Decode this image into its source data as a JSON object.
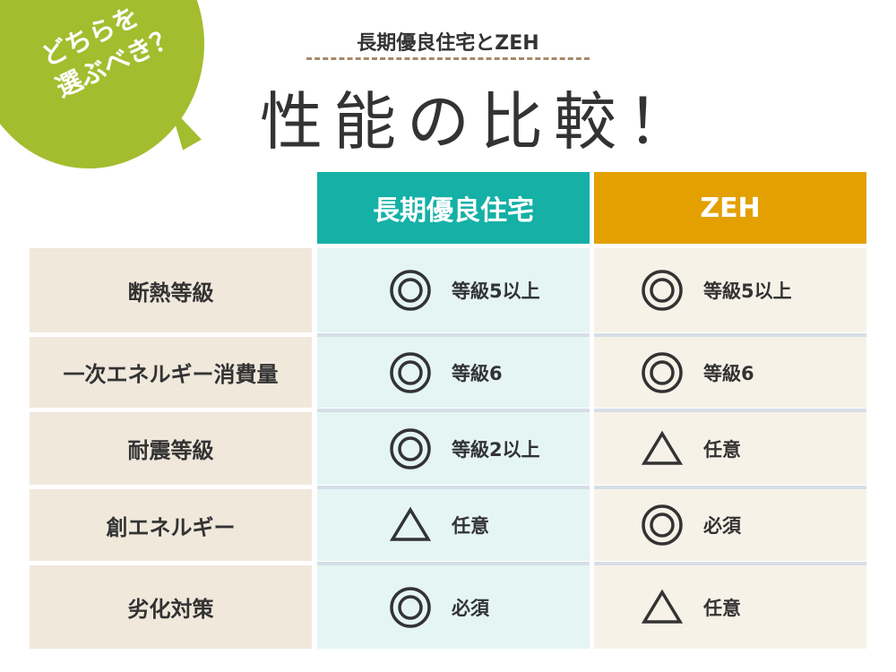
{
  "bubble": {
    "line1": "どちらを",
    "line2": "選ぶべき？",
    "color": "#a3bd2f"
  },
  "subtitle": "長期優良住宅とZEH",
  "title": "性能の比較！",
  "columns": [
    {
      "label": "長期優良住宅",
      "color": "#15b0a6"
    },
    {
      "label": "ZEH",
      "color": "#e3a000"
    }
  ],
  "rows": [
    {
      "label": "断熱等級",
      "a": {
        "mark": "double-circle",
        "text": "等級5以上"
      },
      "b": {
        "mark": "double-circle",
        "text": "等級5以上"
      }
    },
    {
      "label": "一次エネルギー消費量",
      "a": {
        "mark": "double-circle",
        "text": "等級6"
      },
      "b": {
        "mark": "double-circle",
        "text": "等級6"
      }
    },
    {
      "label": "耐震等級",
      "a": {
        "mark": "double-circle",
        "text": "等級2以上"
      },
      "b": {
        "mark": "triangle",
        "text": "任意"
      }
    },
    {
      "label": "創エネルギー",
      "a": {
        "mark": "triangle",
        "text": "任意"
      },
      "b": {
        "mark": "double-circle",
        "text": "必須"
      }
    },
    {
      "label": "劣化対策",
      "a": {
        "mark": "double-circle",
        "text": "必須"
      },
      "b": {
        "mark": "triangle",
        "text": "任意"
      }
    }
  ]
}
